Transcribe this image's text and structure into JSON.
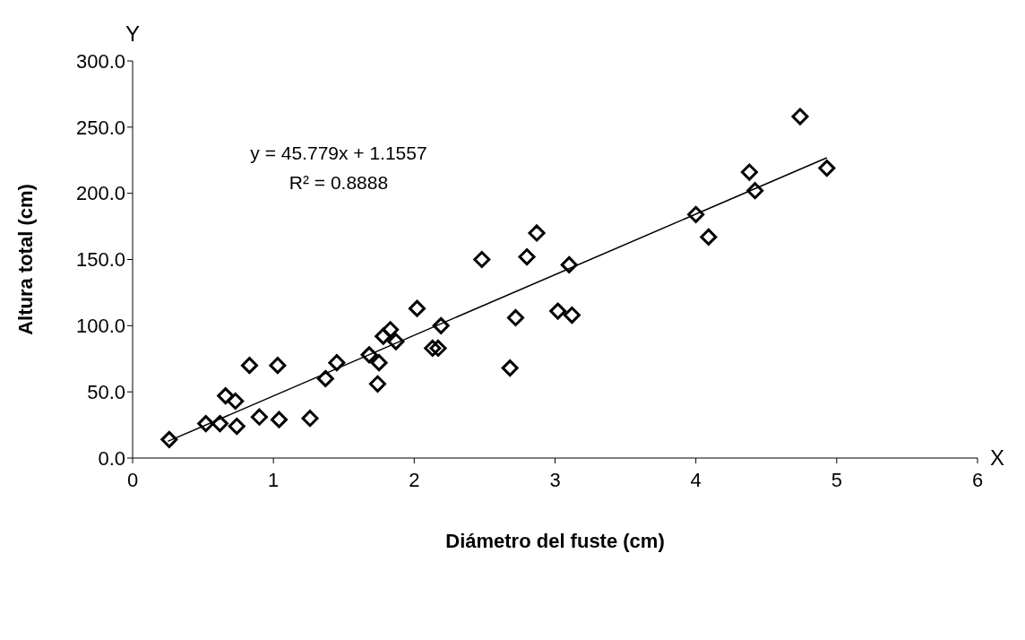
{
  "chart_data": {
    "type": "scatter",
    "xlabel": "Diámetro del fuste (cm)",
    "ylabel": "Altura total (cm)",
    "annotations": [
      "y = 45.779x + 1.1557",
      "R² = 0.8888",
      "Y",
      "X"
    ],
    "xlim": [
      0,
      6
    ],
    "xticks": [
      0,
      1,
      2,
      3,
      4,
      5,
      6
    ],
    "ylim": [
      0,
      300
    ],
    "yticks": [
      {
        "value": 0,
        "label": "0.0"
      },
      {
        "value": 50,
        "label": "50.0"
      },
      {
        "value": 100,
        "label": "100.0"
      },
      {
        "value": 150,
        "label": "150.0"
      },
      {
        "value": 200,
        "label": "200.0"
      },
      {
        "value": 250,
        "label": "250.0"
      },
      {
        "value": 300,
        "label": "300.0"
      }
    ],
    "grid": false,
    "legend": false,
    "marker": "diamond",
    "series": [
      {
        "color": "#000000",
        "x": [
          0.26,
          0.52,
          0.62,
          0.66,
          0.73,
          0.74,
          0.83,
          0.9,
          1.03,
          1.04,
          1.26,
          1.37,
          1.45,
          1.68,
          1.74,
          1.75,
          1.78,
          1.83,
          1.87,
          2.02,
          2.13,
          2.17,
          2.19,
          2.48,
          2.68,
          2.72,
          2.8,
          2.87,
          3.02,
          3.1,
          3.12,
          4.0,
          4.09,
          4.38,
          4.42,
          4.74,
          4.93
        ],
        "values": [
          14,
          26,
          26,
          47,
          43,
          24,
          70,
          31,
          70,
          29,
          30,
          60,
          72,
          78,
          56,
          72,
          92,
          97,
          88,
          113,
          83,
          83,
          100,
          150,
          68,
          106,
          152,
          170,
          111,
          146,
          108,
          184,
          167,
          216,
          202,
          258,
          219
        ]
      },
      {
        "type": "line",
        "color": "#000000",
        "marker": "none",
        "line_style": "solid",
        "x": [
          0.25,
          4.93
        ],
        "values": [
          12.6,
          226.9
        ]
      }
    ]
  }
}
